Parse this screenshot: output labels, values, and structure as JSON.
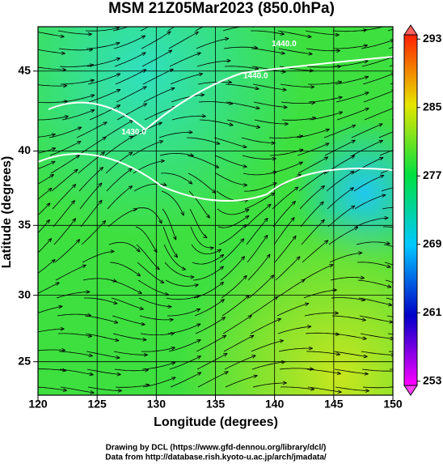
{
  "chart_data": {
    "type": "map",
    "title": "MSM 21Z05Mar2023 (850.0hPa)",
    "x_label": "Longitude (degrees)",
    "y_label": "Latitude  (degrees)",
    "xlim": [
      120,
      150
    ],
    "xticks": [
      120,
      125,
      130,
      135,
      140,
      145,
      150
    ],
    "ylim": [
      22.4,
      47.6
    ],
    "yticks": [
      25,
      30,
      35,
      40,
      45
    ],
    "projection": "mercator",
    "grid": true,
    "colorbar": {
      "clim": [
        252.5,
        293.5
      ],
      "ticks": [
        253,
        261,
        269,
        277,
        285,
        293
      ]
    },
    "contour_labels": [
      {
        "text": "1440.0",
        "lon": 140.8,
        "lat": 46.6
      },
      {
        "text": "1440.0",
        "lon": 138.4,
        "lat": 44.7
      },
      {
        "text": "1430.0",
        "lon": 128.1,
        "lat": 41.2
      }
    ],
    "footer": [
      "Drawing by DCL (https://www.gfd-dennou.org/library/dcl/)",
      "Data from http://database.rish.kyoto-u.ac.jp/arch/jmadata/"
    ]
  }
}
